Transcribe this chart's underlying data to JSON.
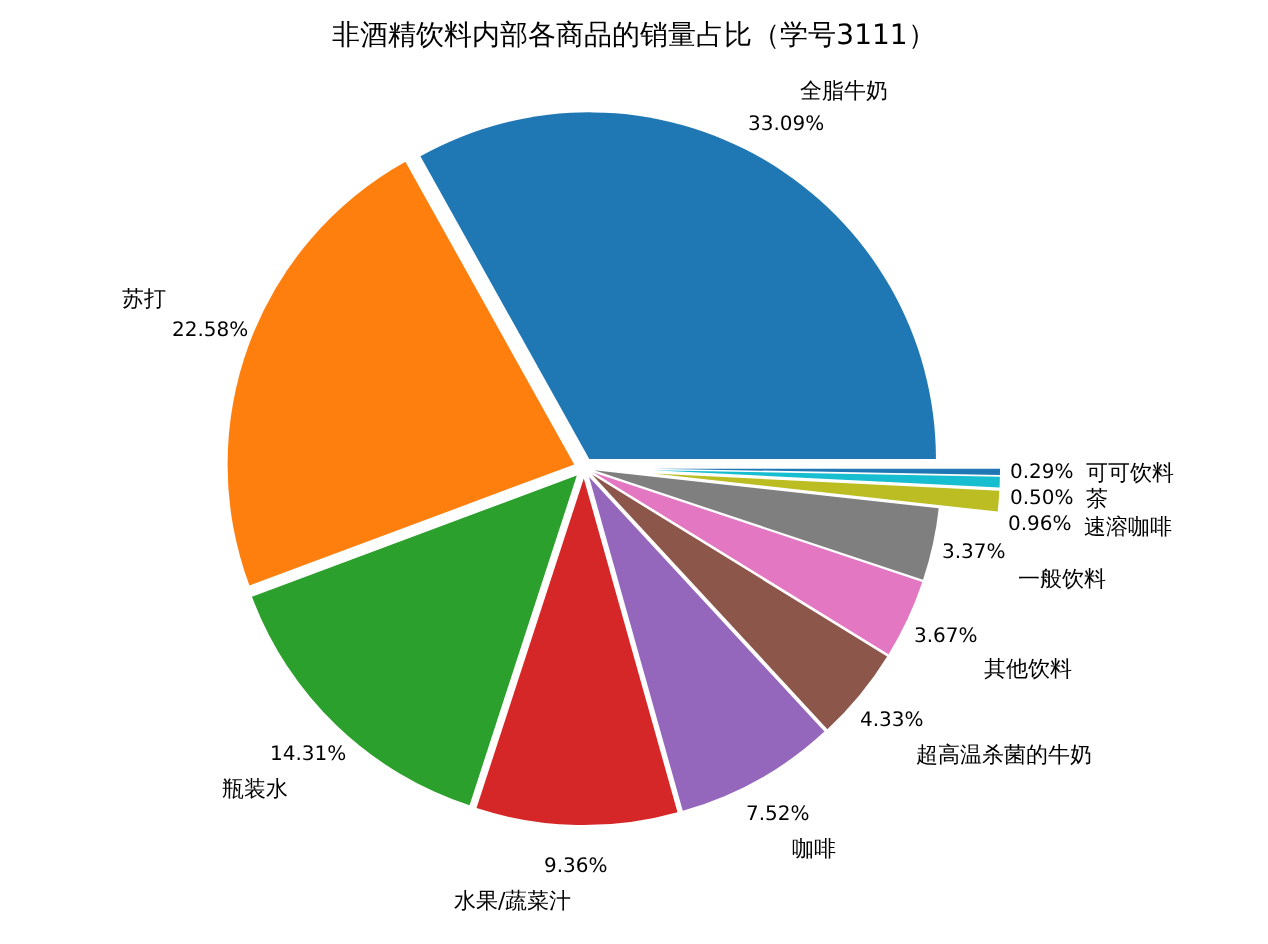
{
  "chart_data": {
    "type": "pie",
    "title": "非酒精饮料内部各商品的销量占比（学号3111）",
    "categories": [
      "全脂牛奶",
      "苏打",
      "瓶装水",
      "水果/蔬菜汁",
      "咖啡",
      "超高温杀菌的牛奶",
      "其他饮料",
      "一般饮料",
      "速溶咖啡",
      "茶",
      "可可饮料"
    ],
    "values": [
      33.09,
      22.58,
      14.31,
      9.36,
      7.52,
      4.33,
      3.67,
      3.37,
      0.96,
      0.5,
      0.29
    ],
    "colors": [
      "#1f77b4",
      "#ff7f0e",
      "#2ca02c",
      "#d62728",
      "#9467bd",
      "#8c564b",
      "#e377c2",
      "#7f7f7f",
      "#bcbd22",
      "#17becf",
      "#1f77b4"
    ],
    "value_labels": [
      "33.09%",
      "22.58%",
      "14.31%",
      "9.36%",
      "7.52%",
      "4.33%",
      "3.67%",
      "3.37%",
      "0.96%",
      "0.50%",
      "0.29%"
    ],
    "legend": false
  }
}
